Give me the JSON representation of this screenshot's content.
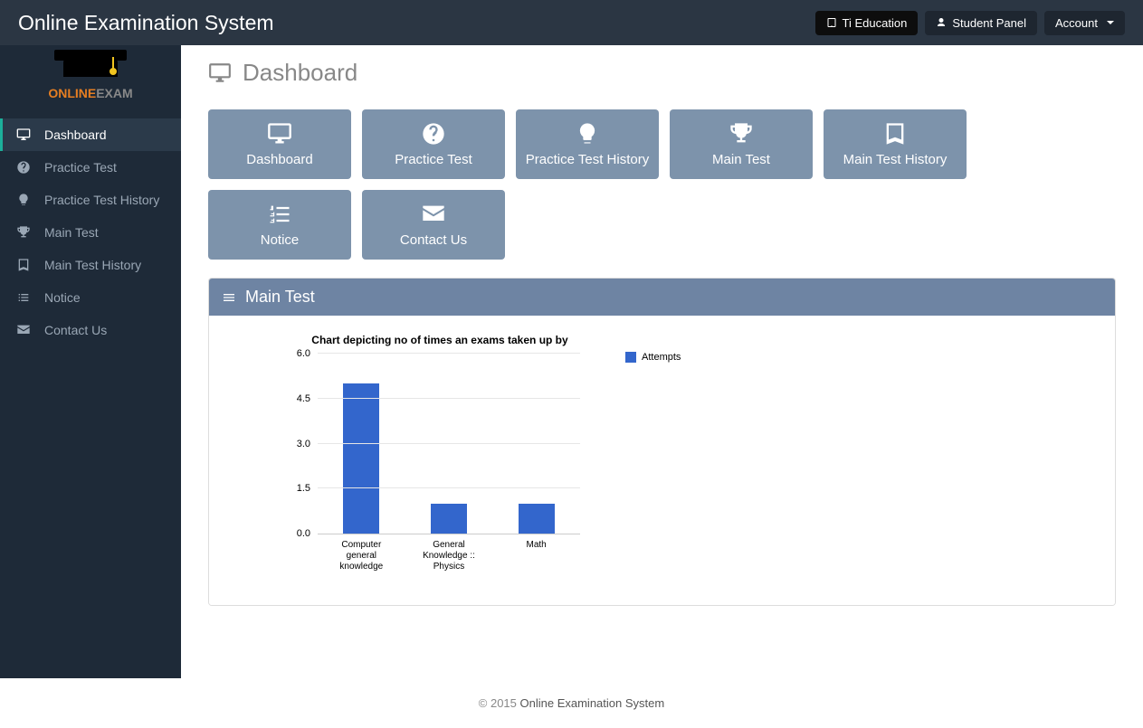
{
  "navbar": {
    "brand": "Online Examination System",
    "buttons": {
      "education": "Ti Education",
      "student_panel": "Student Panel",
      "account": "Account"
    }
  },
  "logo": {
    "line1": "ONLINE",
    "line2": "EXAM"
  },
  "sidebar": {
    "items": [
      {
        "icon": "desktop",
        "label": "Dashboard",
        "active": true
      },
      {
        "icon": "question",
        "label": "Practice Test",
        "active": false
      },
      {
        "icon": "bulb",
        "label": "Practice Test History",
        "active": false
      },
      {
        "icon": "trophy",
        "label": "Main Test",
        "active": false
      },
      {
        "icon": "book",
        "label": "Main Test History",
        "active": false
      },
      {
        "icon": "list",
        "label": "Notice",
        "active": false
      },
      {
        "icon": "envelope",
        "label": "Contact Us",
        "active": false
      }
    ]
  },
  "page": {
    "title": "Dashboard"
  },
  "tiles": [
    {
      "icon": "desktop",
      "label": "Dashboard"
    },
    {
      "icon": "question",
      "label": "Practice Test"
    },
    {
      "icon": "bulb",
      "label": "Practice Test History"
    },
    {
      "icon": "trophy",
      "label": "Main Test"
    },
    {
      "icon": "book",
      "label": "Main Test History"
    },
    {
      "icon": "ol-list",
      "label": "Notice"
    },
    {
      "icon": "envelope",
      "label": "Contact Us"
    }
  ],
  "panel": {
    "title": "Main Test"
  },
  "chart": {
    "type": "bar",
    "title": "Chart depicting no of times an exams taken up by",
    "legend_label": "Attempts",
    "categories": [
      "Computer general knowledge",
      "General Knowledge :: Physics",
      "Math"
    ],
    "values": [
      5.0,
      1.0,
      1.0
    ],
    "bar_color": "#3366cc",
    "ylim": [
      0,
      6
    ],
    "ytick_step": 1.5,
    "yticks": [
      "0.0",
      "1.5",
      "3.0",
      "4.5",
      "6.0"
    ],
    "background_color": "#ffffff",
    "grid_color": "#e6e6e6",
    "title_fontsize": 12,
    "label_fontsize": 10
  },
  "footer": {
    "copyright": "© 2015 ",
    "name": "Online Examination System"
  }
}
